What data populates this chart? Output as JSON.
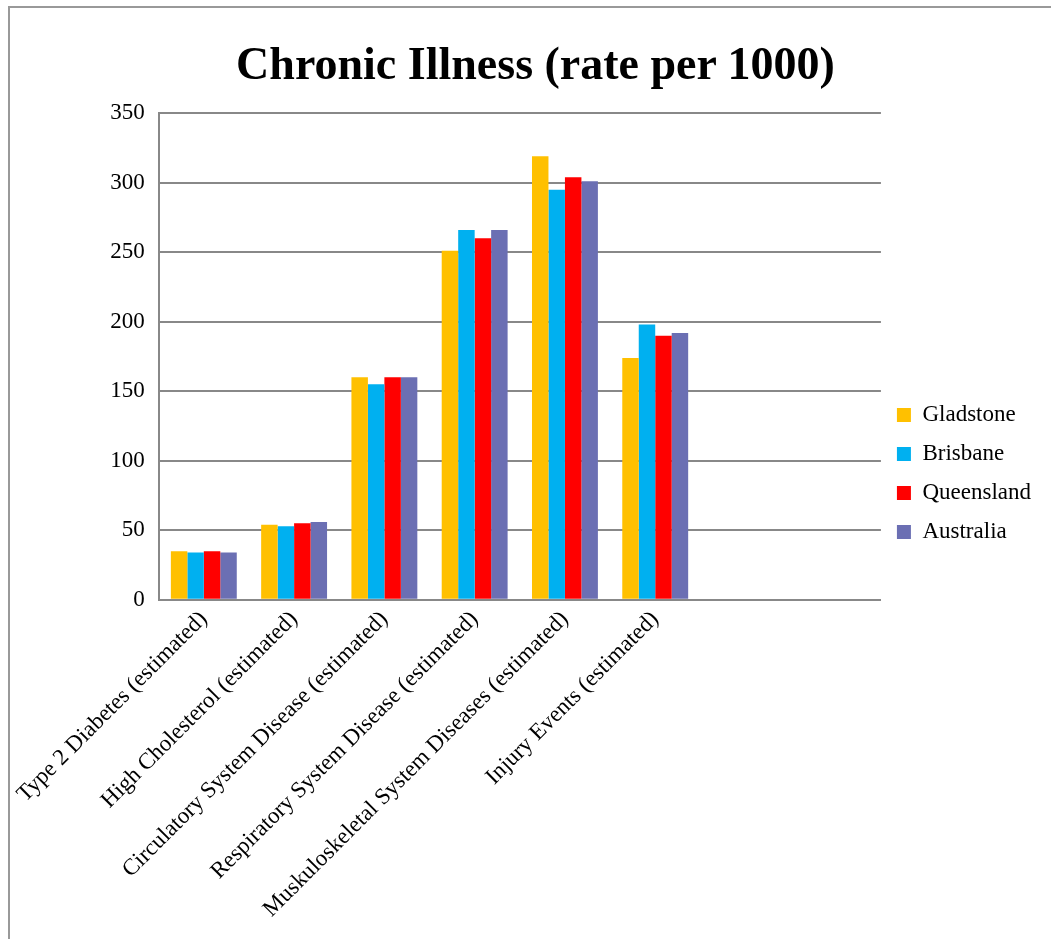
{
  "chart_data": {
    "type": "bar",
    "title": "Chronic Illness (rate per 1000)",
    "categories": [
      "Type 2 Diabetes (estimated)",
      "High Cholesterol (estimated)",
      "Circulatory System Disease (estimated)",
      "Respiratory System Disease (estimated)",
      "Muskuloskeletal System Diseases (estimated)",
      "Injury Events (estimated)",
      null,
      null
    ],
    "series": [
      {
        "name": "Gladstone",
        "color": "#ffc000",
        "values": [
          35,
          54,
          160,
          251,
          319,
          174,
          null,
          null
        ]
      },
      {
        "name": "Brisbane",
        "color": "#00b0f0",
        "values": [
          34,
          53,
          155,
          266,
          295,
          198,
          null,
          null
        ]
      },
      {
        "name": "Queensland",
        "color": "#ff0000",
        "values": [
          35,
          55,
          160,
          260,
          304,
          190,
          null,
          null
        ]
      },
      {
        "name": "Australia",
        "color": "#6b6fb3",
        "values": [
          34,
          56,
          160,
          266,
          301,
          192,
          null,
          null
        ]
      }
    ],
    "ylim": [
      0,
      350
    ],
    "yticks": [
      0,
      50,
      100,
      150,
      200,
      250,
      300,
      350
    ],
    "grid": "y",
    "legend": "right"
  }
}
